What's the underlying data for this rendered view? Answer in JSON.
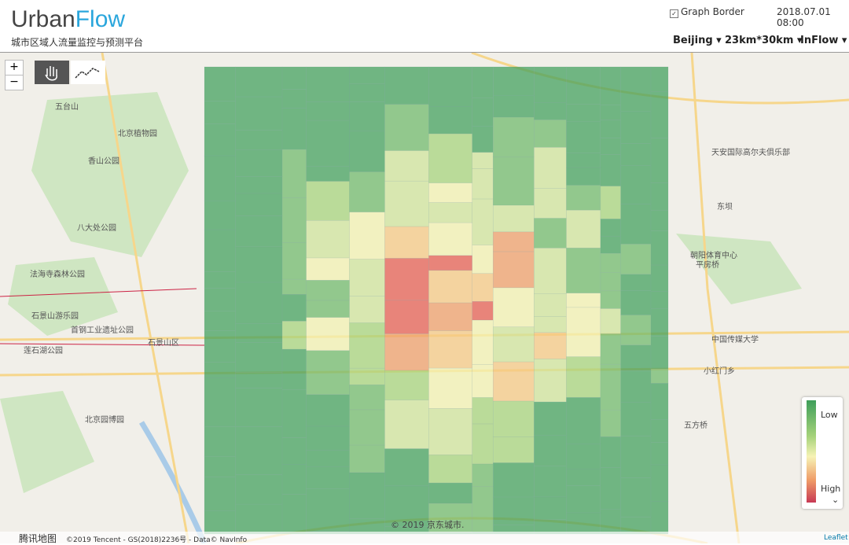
{
  "header": {
    "title_part1": "Urban",
    "title_part2": "Flow",
    "subtitle": "城市区域人流量监控与预测平台",
    "checkbox_label": "Graph Border",
    "datetime": "2018.07.01 08:00",
    "menus": [
      "Beijing",
      "23km*30km",
      "InFlow"
    ]
  },
  "map": {
    "zoom_in": "+",
    "zoom_out": "−",
    "labels": [
      "五台山",
      "北京植物园",
      "香山公园",
      "八大处公园",
      "法海寺森林公园",
      "石景山游乐园",
      "首钢工业遗址公园",
      "莲石湖公园",
      "北京园博园",
      "东坝",
      "朝阳体育中心",
      "平房桥",
      "中国传媒大学",
      "五方桥",
      "天安国际高尔夫俱乐部",
      "石景山区",
      "小红门乡"
    ]
  },
  "legend": {
    "low": "Low",
    "high": "High"
  },
  "attribution": {
    "watermark": "© 2019 京东城市.",
    "provider": "腾讯地图",
    "copyright": "©2019 Tencent - GS(2018)2236号 - Data© NavInfo",
    "leaflet": "Leaflet"
  }
}
